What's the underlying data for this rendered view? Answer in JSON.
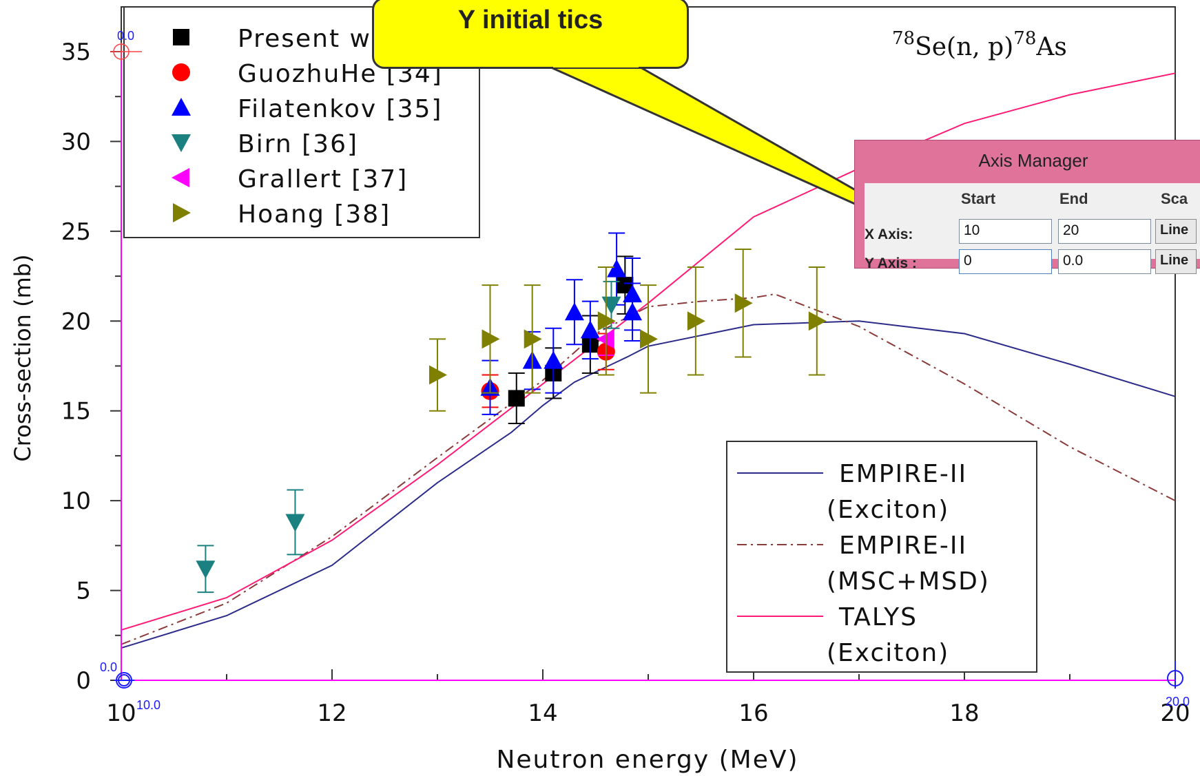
{
  "chart_data": {
    "type": "scatter",
    "title": "",
    "reaction_label": "Se(n, p)",
    "reaction_label_parts": {
      "sup1": "78",
      "mid": "Se(n, p)",
      "sup2": "78",
      "end": "As"
    },
    "xlabel": "Neutron energy (MeV)",
    "ylabel": "Cross-section (mb)",
    "xlim": [
      10,
      20
    ],
    "ylim": [
      0,
      35
    ],
    "x_ticks": [
      "10",
      "12",
      "14",
      "16",
      "18",
      "20"
    ],
    "y_ticks": [
      "0",
      "5",
      "10",
      "15",
      "20",
      "25",
      "30",
      "35"
    ],
    "markers_legend": [
      {
        "name": "Present work",
        "color": "#000000",
        "shape": "square"
      },
      {
        "name": "GuozhuHe [34]",
        "color": "#ff0000",
        "shape": "circle"
      },
      {
        "name": "Filatenkov [35]",
        "color": "#0000ff",
        "shape": "triangle-up"
      },
      {
        "name": "Birn [36]",
        "color": "#1a8080",
        "shape": "triangle-down"
      },
      {
        "name": "Grallert [37]",
        "color": "#ff00ff",
        "shape": "triangle-left"
      },
      {
        "name": "Hoang [38]",
        "color": "#808000",
        "shape": "triangle-right"
      }
    ],
    "scatter_series": [
      {
        "name": "Present work",
        "color": "#000000",
        "shape": "square",
        "points": [
          [
            13.75,
            15.7,
            1.4
          ],
          [
            14.1,
            17.1,
            1.4
          ],
          [
            14.45,
            18.7,
            1.6
          ],
          [
            14.78,
            22.0,
            1.6
          ]
        ]
      },
      {
        "name": "GuozhuHe [34]",
        "color": "#ff0000",
        "shape": "circle",
        "points": [
          [
            13.5,
            16.1,
            0.9
          ],
          [
            14.6,
            18.3,
            1.0
          ]
        ]
      },
      {
        "name": "Filatenkov [35]",
        "color": "#0000ff",
        "shape": "triangle-up",
        "points": [
          [
            13.5,
            16.3,
            1.5
          ],
          [
            13.9,
            17.8,
            1.6
          ],
          [
            14.1,
            17.8,
            1.8
          ],
          [
            14.3,
            20.5,
            1.8
          ],
          [
            14.45,
            19.5,
            1.6
          ],
          [
            14.7,
            22.9,
            2.0
          ],
          [
            14.85,
            21.5,
            2.0
          ],
          [
            14.85,
            20.5,
            1.6
          ]
        ]
      },
      {
        "name": "Birn [36]",
        "color": "#1a8080",
        "shape": "triangle-down",
        "points": [
          [
            10.8,
            6.2,
            1.3
          ],
          [
            11.65,
            8.8,
            1.8
          ],
          [
            14.65,
            20.9,
            1.3
          ]
        ]
      },
      {
        "name": "Grallert [37]",
        "color": "#ff00ff",
        "shape": "triangle-left",
        "points": [
          [
            14.6,
            19.0,
            0.9
          ]
        ]
      },
      {
        "name": "Hoang [38]",
        "color": "#808000",
        "shape": "triangle-right",
        "points": [
          [
            13.0,
            17.0,
            2.0
          ],
          [
            13.5,
            19.0,
            3.0
          ],
          [
            13.9,
            19.0,
            3.0
          ],
          [
            14.6,
            20.0,
            3.0
          ],
          [
            15.0,
            19.0,
            3.0
          ],
          [
            15.45,
            20.0,
            3.0
          ],
          [
            15.9,
            21.0,
            3.0
          ],
          [
            16.6,
            20.0,
            3.0
          ]
        ]
      }
    ],
    "line_series": [
      {
        "name": "EMPIRE-II (Exciton)",
        "color": "#2b2b8a",
        "dash": "",
        "x": [
          10,
          11,
          12,
          13,
          13.7,
          14,
          14.3,
          14.8,
          15,
          15.5,
          16,
          16.5,
          17,
          18,
          19,
          20
        ],
        "y": [
          1.8,
          3.6,
          6.4,
          11.0,
          13.8,
          15.3,
          16.6,
          18.0,
          18.6,
          19.2,
          19.8,
          19.9,
          20.0,
          19.3,
          17.6,
          15.8
        ]
      },
      {
        "name": "EMPIRE-II (MSC+MSD)",
        "color": "#8b3a3a",
        "dash": "14,6,3,6",
        "x": [
          10,
          11,
          12,
          13,
          14,
          14.5,
          15,
          15.5,
          16,
          16.2,
          17,
          18,
          19,
          20
        ],
        "y": [
          2.0,
          4.3,
          8.0,
          12.4,
          16.7,
          19.3,
          20.8,
          21.1,
          21.3,
          21.5,
          19.7,
          16.5,
          13.0,
          10.0
        ]
      },
      {
        "name": "TALYS (Exciton)",
        "color": "#ff1a75",
        "dash": "",
        "x": [
          10,
          11,
          12,
          13,
          14,
          15,
          16,
          17,
          18,
          19,
          20
        ],
        "y": [
          2.8,
          4.6,
          7.8,
          12.0,
          16.5,
          21.0,
          25.8,
          28.5,
          31.0,
          32.6,
          33.8
        ]
      }
    ],
    "lines_legend": [
      {
        "line1": "EMPIRE-II",
        "line2": "(Exciton)",
        "color": "#2b2b8a",
        "dash": ""
      },
      {
        "line1": "EMPIRE-II",
        "line2": "(MSC+MSD)",
        "color": "#8b3a3a",
        "dash": "14,6,3,6"
      },
      {
        "line1": "TALYS",
        "line2": "(Exciton)",
        "color": "#ff1a75",
        "dash": ""
      }
    ],
    "legend_position": "top-left and bottom-right",
    "grid": false
  },
  "digitizer_overlay": {
    "x_start_label": "10.0",
    "x_end_label": "20.0",
    "y_start_label": "0.0",
    "y_end_label": "0.0",
    "color": "#1a1aff",
    "axis_color": "#ff00ff"
  },
  "callout": {
    "text": "Y initial tics"
  },
  "axis_manager": {
    "title": "Axis Manager",
    "col_start": "Start",
    "col_end": "End",
    "col_scale": "Sca",
    "row_x": "X Axis:",
    "row_y": "Y Axis :",
    "x_start": "10",
    "x_end": "20",
    "x_scale": "Line",
    "y_start": "0",
    "y_end": "0.0",
    "y_scale": "Line"
  }
}
